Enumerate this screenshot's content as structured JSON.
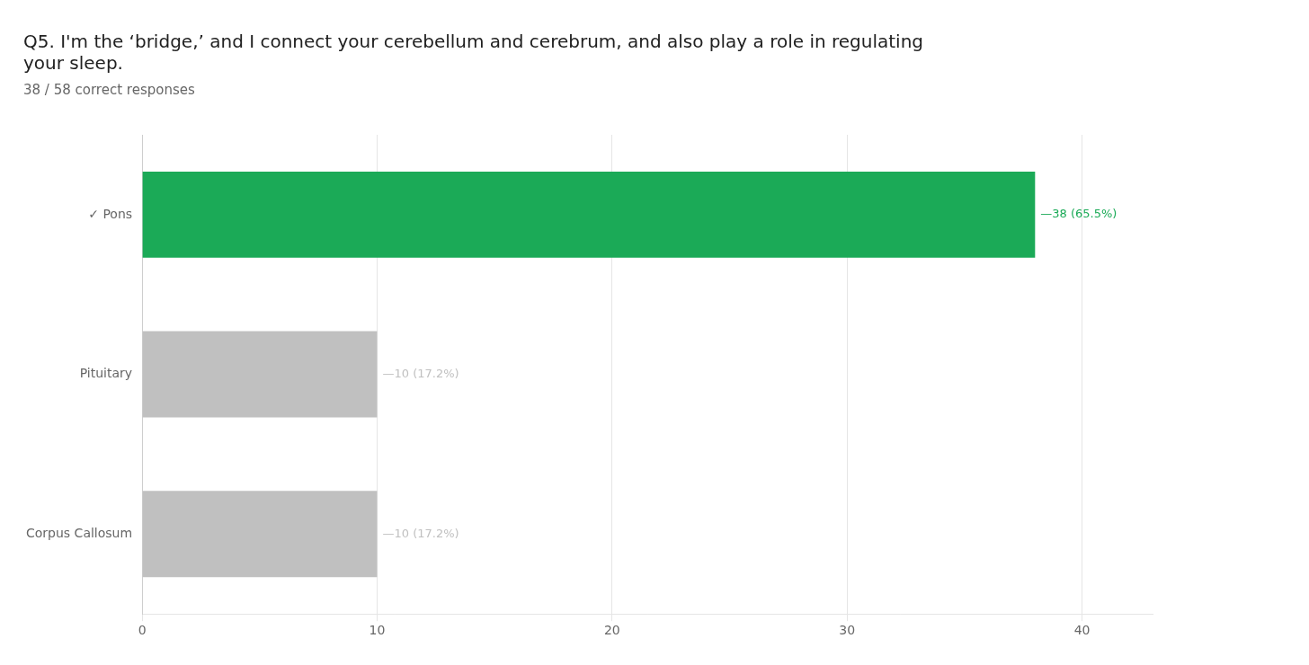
{
  "chart_data": {
    "type": "bar",
    "orientation": "horizontal",
    "title": [
      "Q5. I'm the ‘bridge,’ and I connect your cerebellum and cerebrum, and also play a role in regulating",
      "your sleep."
    ],
    "subtitle": "38 / 58 correct responses",
    "categories": [
      "✓ Pons",
      "Pituitary",
      "Corpus Callosum"
    ],
    "values": [
      38,
      10,
      10
    ],
    "value_labels": [
      "—38 (65.5%)",
      "—10 (17.2%)",
      "—10 (17.2%)"
    ],
    "data_labels": true,
    "colors": [
      "#1baa57",
      "#c0c0c0",
      "#c0c0c0"
    ],
    "xlim": [
      0,
      43
    ],
    "xticks": [
      0,
      10,
      20,
      30,
      40
    ],
    "grid": true
  }
}
